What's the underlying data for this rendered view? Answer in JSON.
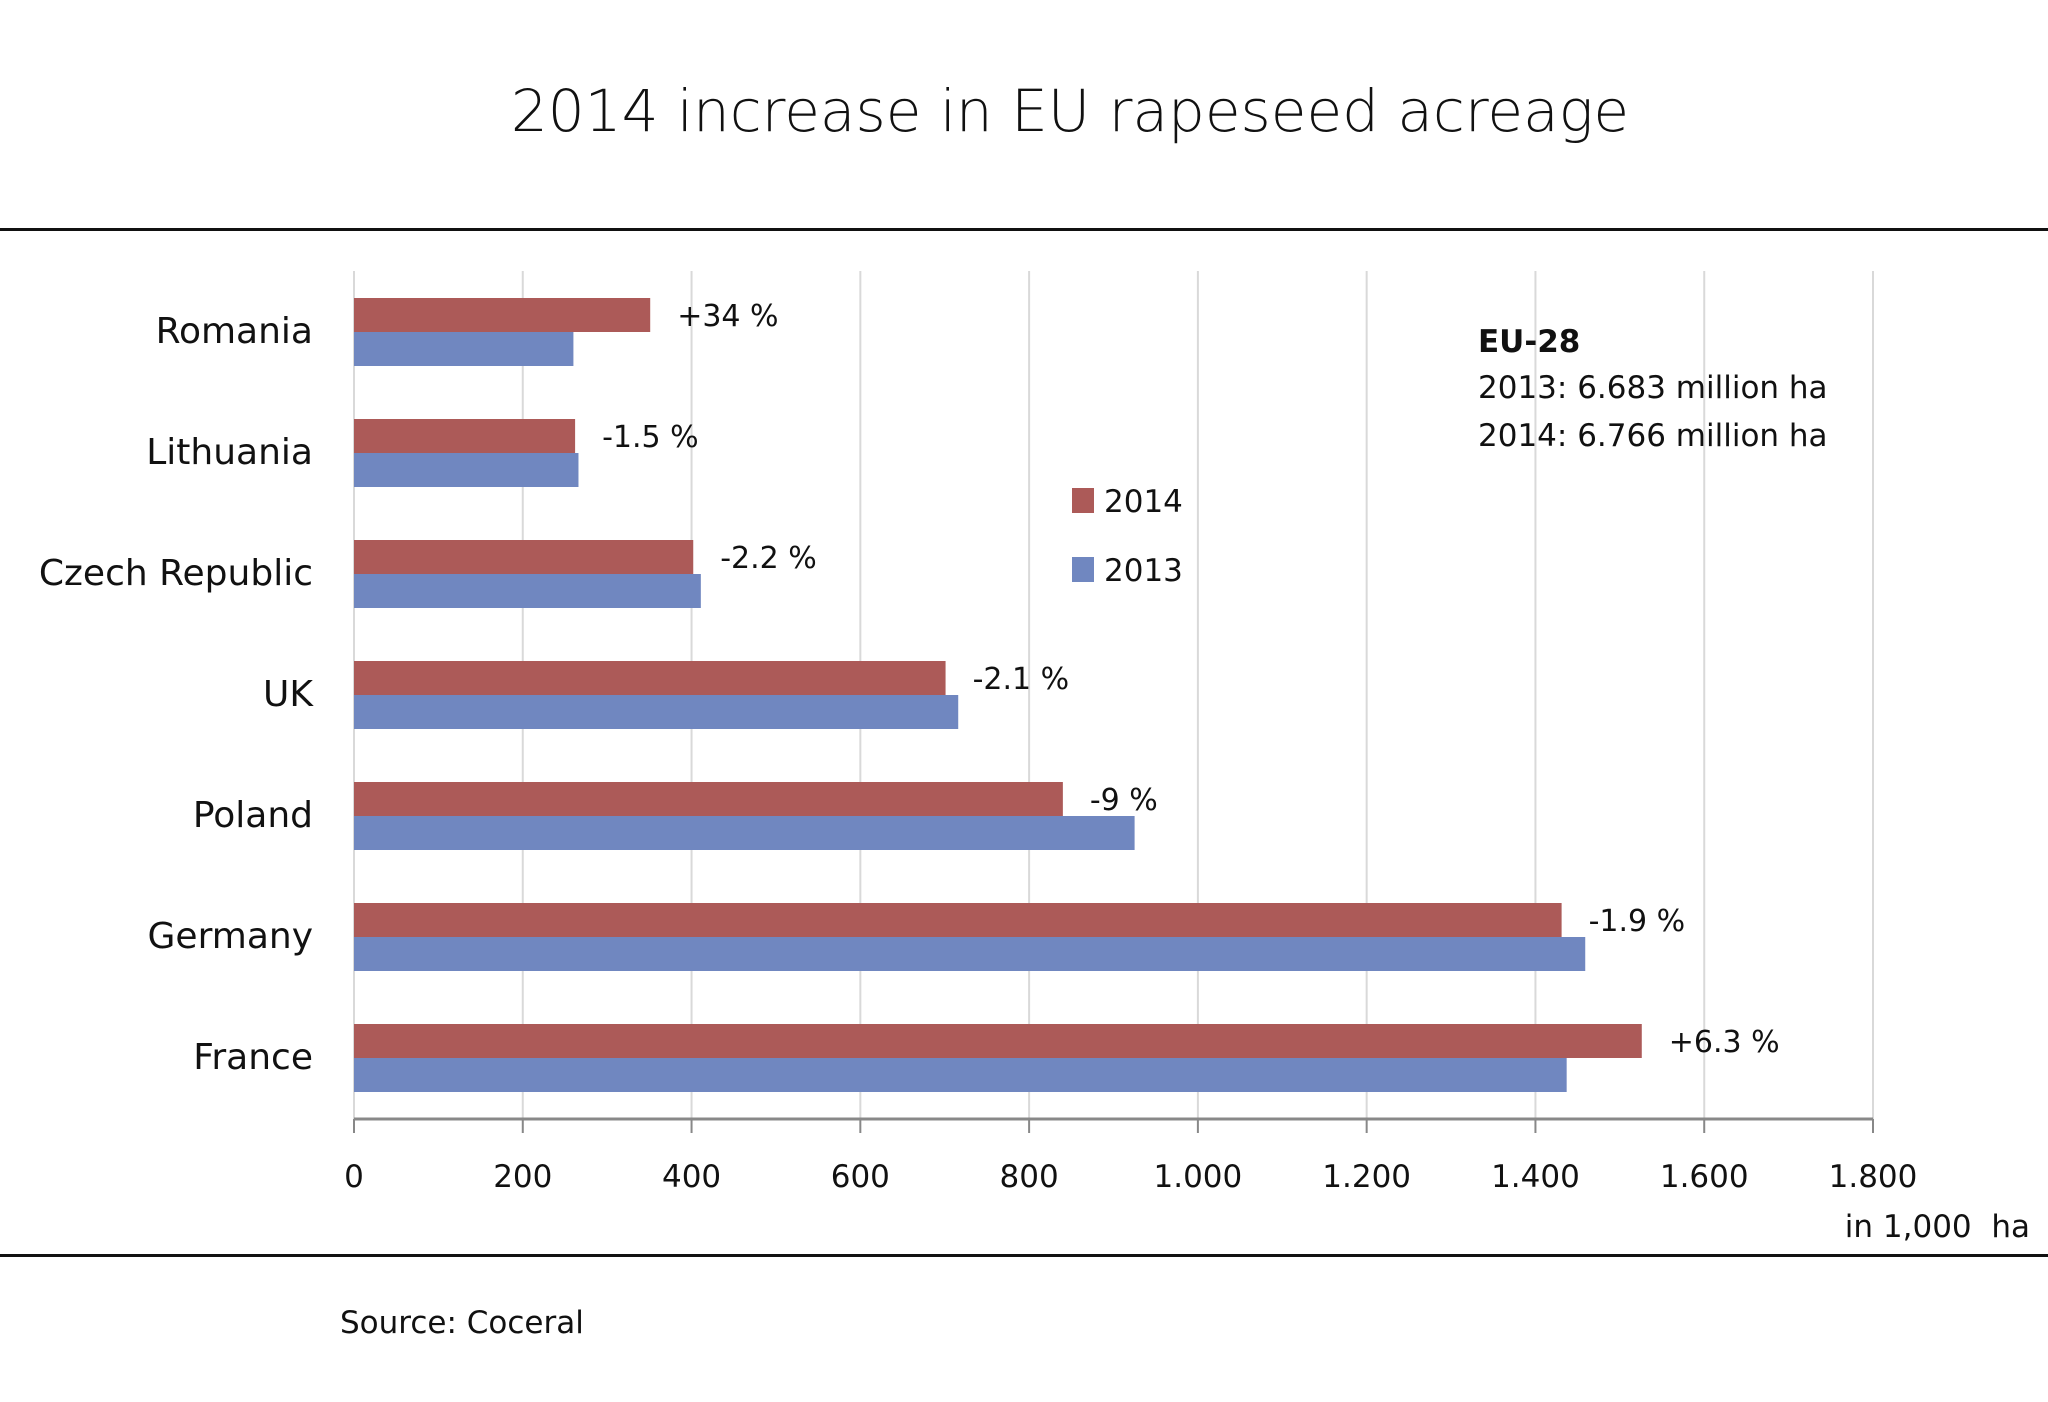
{
  "chart_data": {
    "type": "bar",
    "orientation": "horizontal",
    "title": "2014 increase in EU rapeseed acreage",
    "categories": [
      "Romania",
      "Lithuania",
      "Czech Republic",
      "UK",
      "Poland",
      "Germany",
      "France"
    ],
    "series": [
      {
        "name": "2014",
        "color": "#AC5A58",
        "values": [
          351,
          262,
          402,
          701,
          840,
          1431,
          1526
        ]
      },
      {
        "name": "2013",
        "color": "#7087C0",
        "values": [
          260,
          266,
          411,
          716,
          925,
          1459,
          1437
        ]
      }
    ],
    "data_labels": [
      "+34 %",
      "-1.5 %",
      "-2.2 %",
      "-2.1 %",
      "-9 %",
      "-1.9 %",
      "+6.3 %"
    ],
    "xlabel": "in 1,000  ha",
    "ylabel": "",
    "xlim": [
      0,
      1800
    ],
    "x_ticks": [
      0,
      200,
      400,
      600,
      800,
      1000,
      1200,
      1400,
      1600,
      1800
    ],
    "x_tick_labels": [
      "0",
      "200",
      "400",
      "600",
      "800",
      "1.000",
      "1.200",
      "1.400",
      "1.600",
      "1.800"
    ],
    "grid": "vertical",
    "legend": {
      "position": "center",
      "entries": [
        "2014",
        "2013"
      ]
    },
    "annotation": {
      "heading": "EU-28",
      "lines": [
        "2013: 6.683 million ha",
        "2014: 6.766 million ha"
      ]
    },
    "source": "Source: Coceral"
  }
}
